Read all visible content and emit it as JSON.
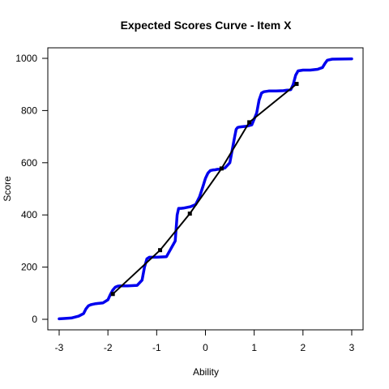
{
  "chart_data": {
    "type": "line",
    "title": "Expected Scores Curve - Item  X",
    "xlabel": "Ability",
    "ylabel": "Score",
    "xlim": [
      -3,
      3
    ],
    "ylim": [
      0,
      1000
    ],
    "x_ticks": [
      -3,
      -2,
      -1,
      0,
      1,
      2,
      3
    ],
    "y_ticks": [
      0,
      200,
      400,
      600,
      800,
      1000
    ],
    "grid": false,
    "colors": {
      "expected_curve": "#0000ee",
      "observed": "#000000"
    },
    "series": [
      {
        "style": "thick-line",
        "x": [
          -3.0,
          -2.9,
          -2.75,
          -2.6,
          -2.5,
          -2.45,
          -2.4,
          -2.35,
          -2.3,
          -2.25,
          -2.2,
          -2.1,
          -2.0,
          -1.95,
          -1.9,
          -1.85,
          -1.8,
          -1.75,
          -1.7,
          -1.6,
          -1.4,
          -1.3,
          -1.25,
          -1.2,
          -1.15,
          -1.1,
          -1.0,
          -0.8,
          -0.62,
          -0.58,
          -0.55,
          -0.5,
          -0.45,
          -0.4,
          -0.3,
          -0.2,
          -0.12,
          -0.05,
          0.0,
          0.05,
          0.1,
          0.15,
          0.2,
          0.25,
          0.3,
          0.4,
          0.5,
          0.55,
          0.6,
          0.63,
          0.66,
          0.7,
          0.75,
          0.85,
          0.95,
          1.05,
          1.1,
          1.15,
          1.2,
          1.3,
          1.45,
          1.6,
          1.75,
          1.8,
          1.85,
          1.9,
          2.0,
          2.15,
          2.3,
          2.4,
          2.45,
          2.5,
          2.6,
          3.0
        ],
        "values": [
          2,
          3,
          5,
          12,
          22,
          40,
          52,
          56,
          58,
          60,
          61,
          63,
          75,
          95,
          112,
          123,
          127,
          128,
          128,
          128,
          130,
          150,
          200,
          232,
          238,
          238,
          238,
          240,
          300,
          400,
          425,
          425,
          426,
          428,
          432,
          440,
          470,
          510,
          540,
          560,
          570,
          572,
          573,
          575,
          575,
          580,
          600,
          650,
          700,
          728,
          735,
          737,
          738,
          740,
          745,
          790,
          840,
          867,
          872,
          875,
          875,
          876,
          880,
          900,
          935,
          952,
          955,
          955,
          958,
          965,
          980,
          993,
          997,
          998
        ]
      },
      {
        "style": "thin-line-with-markers",
        "x": [
          -1.9,
          -0.93,
          -0.32,
          0.33,
          0.9,
          1.87
        ],
        "values": [
          97,
          265,
          405,
          578,
          755,
          902
        ]
      }
    ]
  }
}
